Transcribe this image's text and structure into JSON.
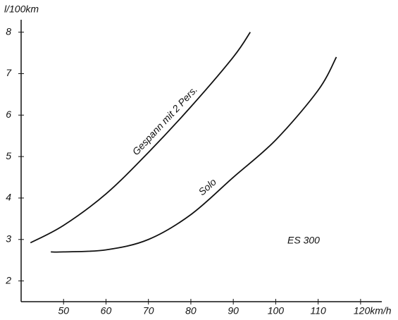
{
  "chart_data": {
    "type": "line",
    "y_label": "l/100km",
    "annotation": "ES 300",
    "x": [
      42.2,
      50,
      60,
      70,
      80,
      90,
      94
    ],
    "series": [
      {
        "name": "Gespann mit 2 Pers.",
        "color": "#111111",
        "x": [
          42.2,
          50,
          60,
          70,
          80,
          90,
          94
        ],
        "values": [
          2.92,
          3.34,
          4.1,
          5.1,
          6.2,
          7.4,
          8.0
        ]
      },
      {
        "name": "Solo",
        "color": "#111111",
        "x": [
          47,
          50,
          60,
          70,
          80,
          90,
          100,
          110,
          114.3
        ],
        "values": [
          2.7,
          2.7,
          2.75,
          3.0,
          3.6,
          4.5,
          5.4,
          6.6,
          7.4
        ]
      }
    ],
    "xlim": [
      40,
      125
    ],
    "ylim": [
      1.5,
      8.3
    ],
    "xticks": [
      50,
      60,
      70,
      80,
      90,
      100,
      110,
      {
        "value": 120,
        "label": "120km/h"
      }
    ],
    "yticks": [
      2,
      3,
      4,
      5,
      6,
      7,
      8
    ],
    "grid": false
  }
}
